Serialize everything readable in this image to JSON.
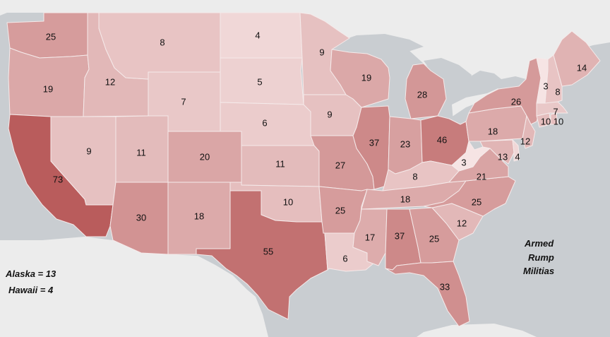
{
  "map": {
    "colors": {
      "water": "#c9cdd1",
      "land": "#ececec",
      "border": "#f5eaea",
      "scale_low": "#f6e4e4",
      "scale_high": "#b95c5c"
    },
    "scale": {
      "min": 3,
      "max": 73
    }
  },
  "annotations": {
    "alaska": "Alaska = 13",
    "hawaii": "Hawaii = 4",
    "title_lines": [
      "Armed",
      "Rump",
      "Militias"
    ]
  },
  "states": [
    {
      "id": "WA",
      "value": 25
    },
    {
      "id": "OR",
      "value": 19
    },
    {
      "id": "CA",
      "value": 73
    },
    {
      "id": "ID",
      "value": 12
    },
    {
      "id": "NV",
      "value": 9
    },
    {
      "id": "MT",
      "value": 8
    },
    {
      "id": "WY",
      "value": 7
    },
    {
      "id": "UT",
      "value": 11
    },
    {
      "id": "AZ",
      "value": 30
    },
    {
      "id": "CO",
      "value": 20
    },
    {
      "id": "NM",
      "value": 18
    },
    {
      "id": "ND",
      "value": 4
    },
    {
      "id": "SD",
      "value": 5
    },
    {
      "id": "NE",
      "value": 6
    },
    {
      "id": "KS",
      "value": 11
    },
    {
      "id": "OK",
      "value": 10
    },
    {
      "id": "TX",
      "value": 55
    },
    {
      "id": "MN",
      "value": 9
    },
    {
      "id": "IA",
      "value": 9
    },
    {
      "id": "MO",
      "value": 27
    },
    {
      "id": "AR",
      "value": 25
    },
    {
      "id": "LA",
      "value": 6
    },
    {
      "id": "WI",
      "value": 19
    },
    {
      "id": "IL",
      "value": 37
    },
    {
      "id": "MI",
      "value": 28
    },
    {
      "id": "IN",
      "value": 23
    },
    {
      "id": "OH",
      "value": 46
    },
    {
      "id": "KY",
      "value": 8
    },
    {
      "id": "TN",
      "value": 18
    },
    {
      "id": "MS",
      "value": 17
    },
    {
      "id": "AL",
      "value": 37
    },
    {
      "id": "GA",
      "value": 25
    },
    {
      "id": "FL",
      "value": 33
    },
    {
      "id": "SC",
      "value": 12
    },
    {
      "id": "NC",
      "value": 25
    },
    {
      "id": "VA",
      "value": 21
    },
    {
      "id": "WV",
      "value": 3
    },
    {
      "id": "PA",
      "value": 18
    },
    {
      "id": "NY",
      "value": 26
    },
    {
      "id": "MD",
      "value": 13
    },
    {
      "id": "DE",
      "value": 4
    },
    {
      "id": "NJ",
      "value": 12
    },
    {
      "id": "CT",
      "value": 10
    },
    {
      "id": "RI",
      "value": 10
    },
    {
      "id": "MA",
      "value": 7
    },
    {
      "id": "VT",
      "value": 3
    },
    {
      "id": "NH",
      "value": 8
    },
    {
      "id": "ME",
      "value": 14
    }
  ]
}
